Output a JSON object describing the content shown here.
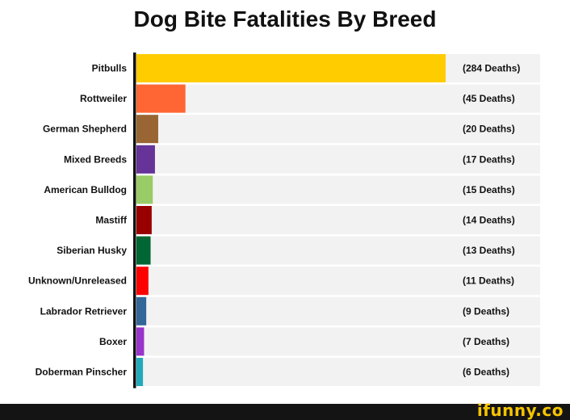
{
  "chart_data": {
    "type": "bar",
    "orientation": "horizontal",
    "title": "Dog Bite Fatalities By Breed",
    "xlabel": "",
    "ylabel": "",
    "xlim": [
      0,
      284
    ],
    "grid": false,
    "legend": "none",
    "categories": [
      "Pitbulls",
      "Rottweiler",
      "German Shepherd",
      "Mixed Breeds",
      "American Bulldog",
      "Mastiff",
      "Siberian Husky",
      "Unknown/Unreleased",
      "Labrador Retriever",
      "Boxer",
      "Doberman Pinscher"
    ],
    "values": [
      284,
      45,
      20,
      17,
      15,
      14,
      13,
      11,
      9,
      7,
      6
    ],
    "value_labels": [
      "(284 Deaths)",
      "(45 Deaths)",
      "(20 Deaths)",
      "(17 Deaths)",
      "(15 Deaths)",
      "(14 Deaths)",
      "(13 Deaths)",
      "(11 Deaths)",
      "(9 Deaths)",
      "(7 Deaths)",
      "(6 Deaths)"
    ],
    "colors": [
      "#ffcc00",
      "#ff6633",
      "#996633",
      "#663399",
      "#99cc66",
      "#990000",
      "#006633",
      "#ff0000",
      "#336699",
      "#9933cc",
      "#22aabb"
    ],
    "track_color": "#f2f2f2",
    "axis_color": "#111111"
  },
  "watermark": "ifunny.co"
}
